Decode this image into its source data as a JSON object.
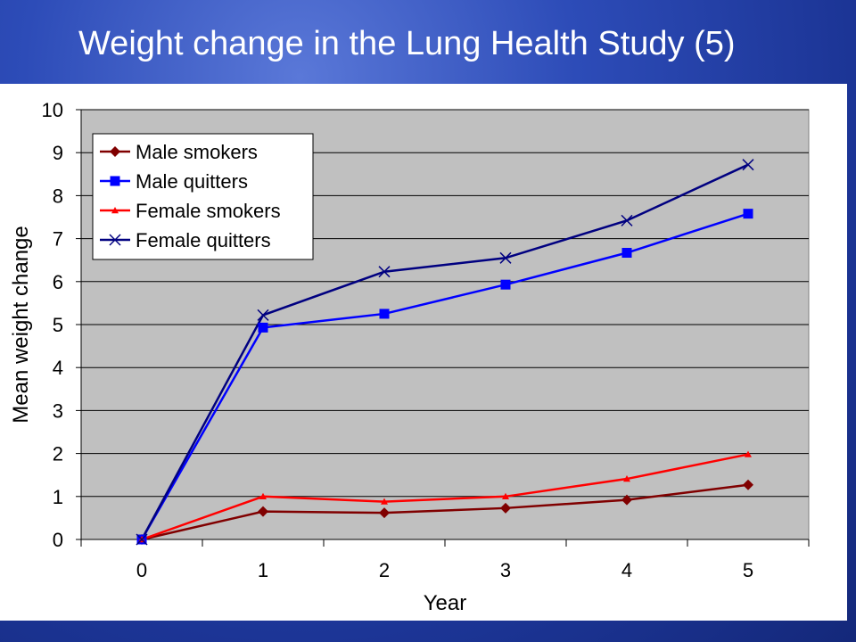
{
  "slide": {
    "title": "Weight change in the Lung Health Study (5)"
  },
  "chart_data": {
    "type": "line",
    "title": "",
    "xlabel": "Year",
    "ylabel": "Mean weight change",
    "x": [
      0,
      1,
      2,
      3,
      4,
      5
    ],
    "ylim": [
      0,
      10
    ],
    "yticks": [
      0,
      1,
      2,
      3,
      4,
      5,
      6,
      7,
      8,
      9,
      10
    ],
    "grid": true,
    "legend_position": "top-left",
    "plot_background": "#c0c0c0",
    "series": [
      {
        "name": "Male smokers",
        "color": "#800000",
        "marker": "diamond",
        "values": [
          0,
          0.65,
          0.62,
          0.73,
          0.92,
          1.27
        ]
      },
      {
        "name": "Male quitters",
        "color": "#0000ff",
        "marker": "square",
        "values": [
          0,
          4.93,
          5.25,
          5.93,
          6.67,
          7.58
        ]
      },
      {
        "name": "Female smokers",
        "color": "#ff0000",
        "marker": "triangle",
        "values": [
          0,
          1.0,
          0.88,
          1.0,
          1.41,
          1.98
        ]
      },
      {
        "name": "Female quitters",
        "color": "#000080",
        "marker": "x",
        "values": [
          0,
          5.22,
          6.23,
          6.55,
          7.42,
          8.72
        ]
      }
    ]
  }
}
